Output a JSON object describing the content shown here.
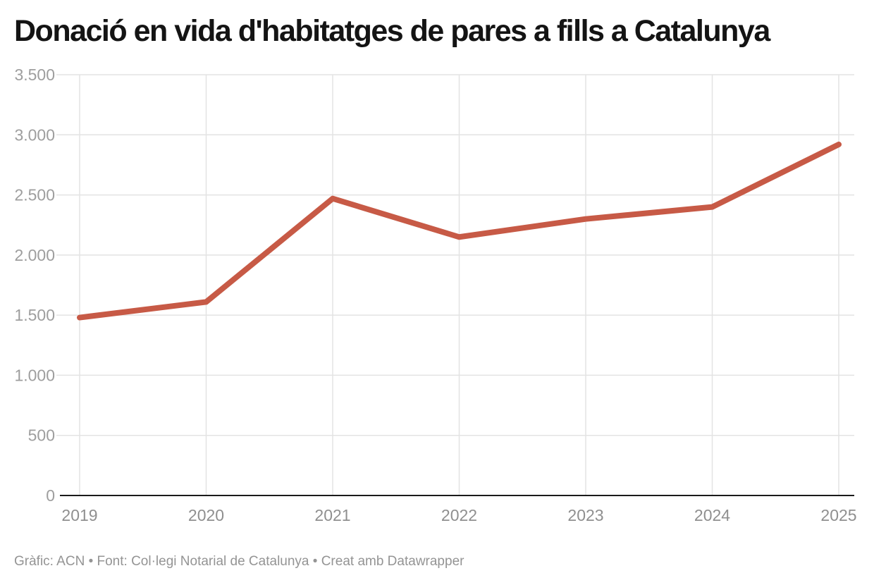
{
  "title": "Donació en vida d'habitatges de pares a fills a Catalunya",
  "footer": {
    "text": "Gràfic: ACN • Font: Col·legi Notarial de Catalunya • Creat amb Datawrapper"
  },
  "chart_data": {
    "type": "line",
    "title": "Donació en vida d'habitatges de pares a fills a Catalunya",
    "categories": [
      "2019",
      "2020",
      "2021",
      "2022",
      "2023",
      "2024",
      "2025"
    ],
    "values": [
      1480,
      1610,
      2470,
      2150,
      2300,
      2400,
      2920
    ],
    "xlabel": "",
    "ylabel": "",
    "ylim": [
      0,
      3500
    ],
    "yticks": [
      0,
      500,
      1000,
      1500,
      2000,
      2500,
      3000,
      3500
    ],
    "ytick_labels": [
      "0",
      "500",
      "1.000",
      "1.500",
      "2.000",
      "2.500",
      "3.000",
      "3.500"
    ],
    "grid": true,
    "legend": "none",
    "line_color": "#c75a46",
    "axis_color": "#1a1a1a",
    "grid_color": "#e3e3e3",
    "ytick_label_color": "#9e9e9e",
    "xtick_label_color": "#8f8f8f"
  }
}
